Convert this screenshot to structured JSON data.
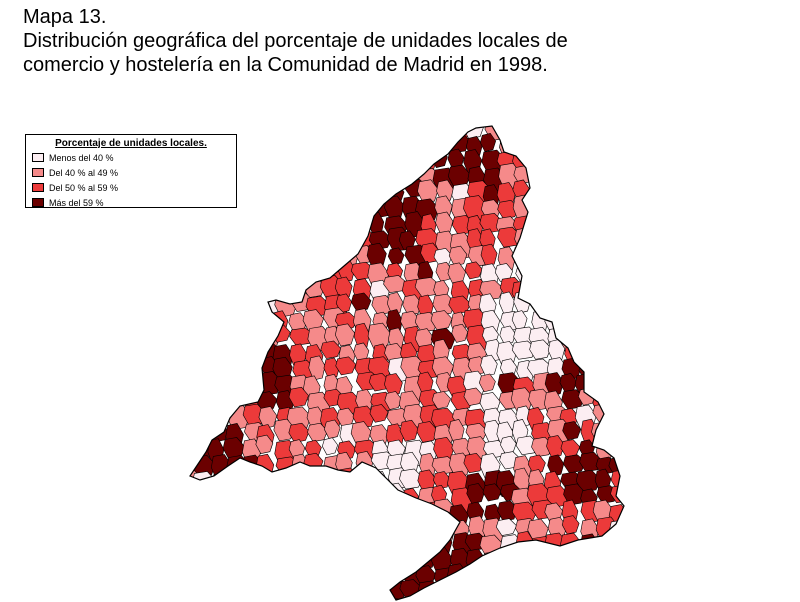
{
  "title": {
    "line1": "Mapa 13.",
    "line2": "Distribución geográfica del porcentaje de unidades locales de",
    "line3": "comercio y hostelería en la Comunidad de Madrid en 1998."
  },
  "legend": {
    "title": "Porcentaje de unidades locales.",
    "items": [
      {
        "label": "Menos del 40 %",
        "color": "#fceef2"
      },
      {
        "label": "Del 40 % al 49 %",
        "color": "#f58a8a"
      },
      {
        "label": "Del 50 % al 59 %",
        "color": "#ec3a3a"
      },
      {
        "label": "Más del 59 %",
        "color": "#6b0000"
      }
    ]
  },
  "map": {
    "region": "Comunidad de Madrid",
    "boundary_color": "#000000",
    "classes": [
      "Menos del 40 %",
      "Del 40 % al 49 %",
      "Del 50 % al 59 %",
      "Más del 59 %"
    ]
  }
}
